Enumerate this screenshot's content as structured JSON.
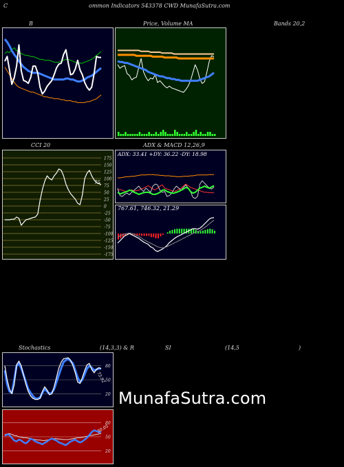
{
  "header": {
    "c": "C",
    "title": "ommon  Indicators 543378  CWD MunafaSutra.com"
  },
  "titles": {
    "bollinger": "B",
    "price_volume": "Price,  Volume  MA",
    "bands": "Bands 20,2",
    "cci": "CCI 20",
    "adx_macd": "ADX  & MACD 12,26,9",
    "stoch_a": "Stochastics",
    "stoch_b": "(14,3,3) & R",
    "rsi_a": "SI",
    "rsi_b": "(14,5",
    "rsi_c": ")"
  },
  "watermark": "MunafaSutra.com",
  "colors": {
    "navy_bg": "#000022",
    "green_bg": "#002200",
    "olive_bg": "#111d00",
    "red_bg": "#990000",
    "blue_line": "#3f7fff",
    "orange_line": "#ff8c00",
    "green_line": "#00cc00",
    "lime": "#33ff33"
  },
  "chart_data": [
    {
      "name": "bollinger",
      "type": "line",
      "series": [
        {
          "values": [
            80,
            82,
            81,
            84,
            86,
            83,
            82,
            80,
            79,
            78,
            78,
            77,
            77,
            76,
            75,
            74,
            74,
            73,
            73,
            73,
            72,
            71,
            71,
            71,
            72,
            73,
            74,
            74,
            73,
            72,
            71,
            70,
            70,
            70,
            71,
            72,
            73,
            74,
            76,
            78,
            80,
            82
          ]
        },
        {
          "values": [
            95,
            92,
            88,
            83,
            79,
            76,
            72,
            69,
            66,
            64,
            62,
            61,
            60,
            60,
            60,
            59,
            58,
            57,
            56,
            55,
            54,
            53,
            53,
            53,
            53,
            53,
            54,
            54,
            53,
            53,
            52,
            51,
            51,
            52,
            53,
            55,
            56,
            57,
            59,
            61,
            63,
            65
          ]
        },
        {
          "values": [
            66,
            62,
            58,
            54,
            50,
            47,
            45,
            44,
            43,
            42,
            41,
            40,
            40,
            39,
            38,
            37,
            36,
            35,
            35,
            34,
            34,
            33,
            33,
            33,
            32,
            32,
            31,
            31,
            31,
            30,
            30,
            29,
            29,
            29,
            29,
            30,
            30,
            31,
            32,
            33,
            35,
            37
          ]
        },
        {
          "values": [
            72,
            77,
            63,
            48,
            55,
            67,
            89,
            62,
            52,
            51,
            49,
            55,
            67,
            67,
            60,
            45,
            38,
            41,
            46,
            49,
            52,
            58,
            65,
            69,
            70,
            79,
            84,
            70,
            58,
            59,
            64,
            73,
            63,
            58,
            50,
            45,
            42,
            45,
            59,
            77,
            76,
            76
          ]
        }
      ]
    },
    {
      "name": "price_volume",
      "type": "line",
      "series": [
        {
          "values": [
            66,
            62,
            64,
            65,
            56,
            54,
            49,
            51,
            52,
            63,
            73,
            58,
            52,
            48,
            51,
            50,
            55,
            46,
            48,
            45,
            42,
            40,
            42,
            40,
            39,
            38,
            37,
            36,
            35,
            38,
            42,
            48,
            57,
            66,
            60,
            50,
            45,
            47,
            58,
            70,
            76,
            75
          ]
        },
        {
          "values": [
            82,
            82,
            82,
            82,
            82,
            82,
            82,
            82,
            82,
            82,
            81,
            81,
            81,
            81,
            80,
            80,
            80,
            80,
            80,
            79,
            79,
            79,
            79,
            79,
            78,
            78,
            78,
            78,
            78,
            78,
            78,
            78,
            78,
            78,
            78,
            78,
            78,
            78,
            78,
            78,
            78,
            78
          ]
        },
        {
          "values": [
            77,
            77,
            77,
            77,
            77,
            77,
            77,
            77,
            76,
            76,
            76,
            76,
            76,
            76,
            76,
            75,
            75,
            75,
            75,
            75,
            74,
            74,
            74,
            74,
            74,
            74,
            73,
            73,
            73,
            73,
            73,
            73,
            73,
            73,
            73,
            73,
            73,
            73,
            73,
            73,
            73,
            73
          ]
        },
        {
          "values": [
            70,
            69,
            69,
            68,
            68,
            67,
            66,
            65,
            64,
            63,
            62,
            61,
            60,
            58,
            57,
            56,
            55,
            54,
            53,
            53,
            52,
            51,
            51,
            50,
            50,
            49,
            49,
            48,
            48,
            48,
            48,
            48,
            48,
            48,
            48,
            49,
            50,
            51,
            52,
            53,
            55,
            57
          ]
        }
      ],
      "volume": [
        2,
        1,
        1,
        2,
        1,
        1,
        1,
        1,
        1,
        2,
        1,
        1,
        1,
        2,
        1,
        1,
        2,
        1,
        2,
        3,
        2,
        1,
        1,
        1,
        3,
        2,
        1,
        1,
        1,
        2,
        1,
        1,
        2,
        3,
        1,
        2,
        1,
        1,
        2,
        2,
        1,
        1
      ]
    },
    {
      "name": "cci",
      "type": "line",
      "ticks": [
        175,
        150,
        125,
        100,
        75,
        50,
        25,
        0,
        -25,
        -50,
        -75,
        -100,
        -125,
        -150,
        -175
      ],
      "last_value": 75,
      "values": [
        -50,
        -50,
        -50,
        -48,
        -48,
        -40,
        -45,
        -70,
        -60,
        -50,
        -48,
        -45,
        -42,
        -40,
        -30,
        20,
        60,
        90,
        110,
        100,
        95,
        110,
        120,
        135,
        130,
        110,
        80,
        60,
        45,
        35,
        25,
        10,
        5,
        40,
        100,
        120,
        130,
        110,
        95,
        85,
        82,
        78
      ]
    },
    {
      "name": "adx",
      "type": "line",
      "labels": {
        "adx": "ADX: 33.41",
        "pdi": "+DY: 36.22",
        "mdi": "-DY: 18.98"
      },
      "series": [
        {
          "values": [
            20,
            16,
            18,
            20,
            22,
            25,
            24,
            20,
            18,
            15,
            17,
            19,
            20,
            20,
            18,
            15,
            15,
            17,
            20,
            25,
            26,
            22,
            20,
            18,
            18,
            20,
            22,
            25,
            28,
            32,
            30,
            22,
            18,
            20,
            25,
            30,
            32,
            35,
            32,
            30,
            33,
            36
          ]
        },
        {
          "values": [
            25,
            27,
            25,
            23,
            22,
            24,
            26,
            23,
            24,
            25,
            28,
            30,
            33,
            36,
            32,
            28,
            26,
            30,
            35,
            38,
            30,
            28,
            26,
            24,
            22,
            24,
            27,
            30,
            35,
            40,
            36,
            32,
            30,
            28,
            26,
            24,
            22,
            20,
            20,
            19,
            19,
            19
          ]
        },
        {
          "values": [
            55,
            55,
            56,
            57,
            58,
            58,
            59,
            59,
            60,
            61,
            62,
            62,
            62,
            63,
            63,
            63,
            62,
            62,
            61,
            61,
            60,
            60,
            60,
            59,
            59,
            58,
            58,
            58,
            59,
            59,
            59,
            60,
            60,
            61,
            62,
            62,
            62,
            62,
            62,
            63,
            63,
            63
          ]
        },
        {
          "values": [
            30,
            12,
            10,
            15,
            18,
            14,
            20,
            25,
            30,
            35,
            28,
            22,
            30,
            25,
            20,
            35,
            40,
            38,
            25,
            20,
            22,
            10,
            12,
            18,
            28,
            35,
            30,
            25,
            32,
            38,
            30,
            22,
            8,
            5,
            10,
            40,
            48,
            42,
            36,
            30,
            28,
            33
          ]
        }
      ]
    },
    {
      "name": "macd",
      "type": "line",
      "labels": "767.61,  746.32,  21.29",
      "series": [
        {
          "values": [
            -40,
            -30,
            -20,
            -10,
            -5,
            0,
            -5,
            -10,
            -15,
            -20,
            -28,
            -35,
            -40,
            -45,
            -55,
            -60,
            -70,
            -75,
            -70,
            -65,
            -58,
            -50,
            -38,
            -30,
            -22,
            -15,
            -10,
            -5,
            0,
            5,
            10,
            15,
            20,
            20,
            18,
            22,
            30,
            40,
            50,
            60,
            65,
            66
          ]
        },
        {
          "values": [
            -15,
            -10,
            -5,
            -2,
            0,
            2,
            0,
            -3,
            -8,
            -12,
            -18,
            -25,
            -30,
            -35,
            -40,
            -45,
            -50,
            -55,
            -58,
            -60,
            -58,
            -55,
            -50,
            -45,
            -40,
            -35,
            -30,
            -25,
            -20,
            -15,
            -10,
            -5,
            0,
            5,
            8,
            12,
            18,
            25,
            32,
            40,
            48,
            55
          ]
        },
        {
          "values": [
            -25,
            -20,
            -15,
            -8,
            -5,
            -2,
            -5,
            -7,
            -7,
            -8,
            -10,
            -10,
            -10,
            -10,
            -15,
            -15,
            -20,
            -20,
            -12,
            -5,
            0,
            5,
            12,
            15,
            18,
            20,
            20,
            20,
            20,
            20,
            20,
            20,
            20,
            15,
            10,
            10,
            12,
            15,
            18,
            20,
            17,
            11
          ]
        }
      ]
    },
    {
      "name": "stochastics",
      "type": "line",
      "ticks": [
        80,
        50,
        20
      ],
      "last_value_label": "73.92",
      "series": [
        {
          "values": [
            70,
            40,
            25,
            22,
            50,
            80,
            85,
            75,
            60,
            45,
            30,
            22,
            15,
            10,
            10,
            12,
            22,
            30,
            25,
            20,
            22,
            30,
            45,
            60,
            75,
            88,
            92,
            95,
            90,
            85,
            70,
            55,
            45,
            50,
            62,
            74,
            80,
            76,
            70,
            72,
            74,
            74
          ]
        },
        {
          "values": [
            80,
            50,
            30,
            20,
            40,
            82,
            90,
            80,
            60,
            40,
            25,
            15,
            10,
            8,
            8,
            10,
            25,
            35,
            28,
            18,
            20,
            35,
            55,
            75,
            88,
            95,
            96,
            97,
            92,
            80,
            65,
            45,
            42,
            55,
            70,
            82,
            85,
            72,
            65,
            72,
            76,
            74
          ]
        }
      ]
    },
    {
      "name": "rsi",
      "type": "line",
      "ticks": [
        80,
        50,
        20
      ],
      "last_value_label": "50.05",
      "series": [
        {
          "values": [
            55,
            56,
            57,
            55,
            53,
            52,
            50,
            49,
            48,
            48,
            47,
            46,
            45,
            44,
            43,
            43,
            42,
            42,
            43,
            44,
            45,
            46,
            46,
            45,
            45,
            44,
            44,
            44,
            45,
            46,
            47,
            48,
            48,
            49,
            50,
            51,
            52,
            53,
            54,
            55,
            56,
            57
          ]
        },
        {
          "values": [
            52,
            55,
            54,
            48,
            42,
            40,
            44,
            42,
            38,
            36,
            40,
            46,
            44,
            40,
            38,
            36,
            34,
            37,
            40,
            44,
            46,
            44,
            42,
            38,
            36,
            34,
            32,
            36,
            40,
            42,
            44,
            40,
            38,
            40,
            44,
            48,
            54,
            60,
            64,
            62,
            60,
            60
          ]
        }
      ]
    }
  ]
}
